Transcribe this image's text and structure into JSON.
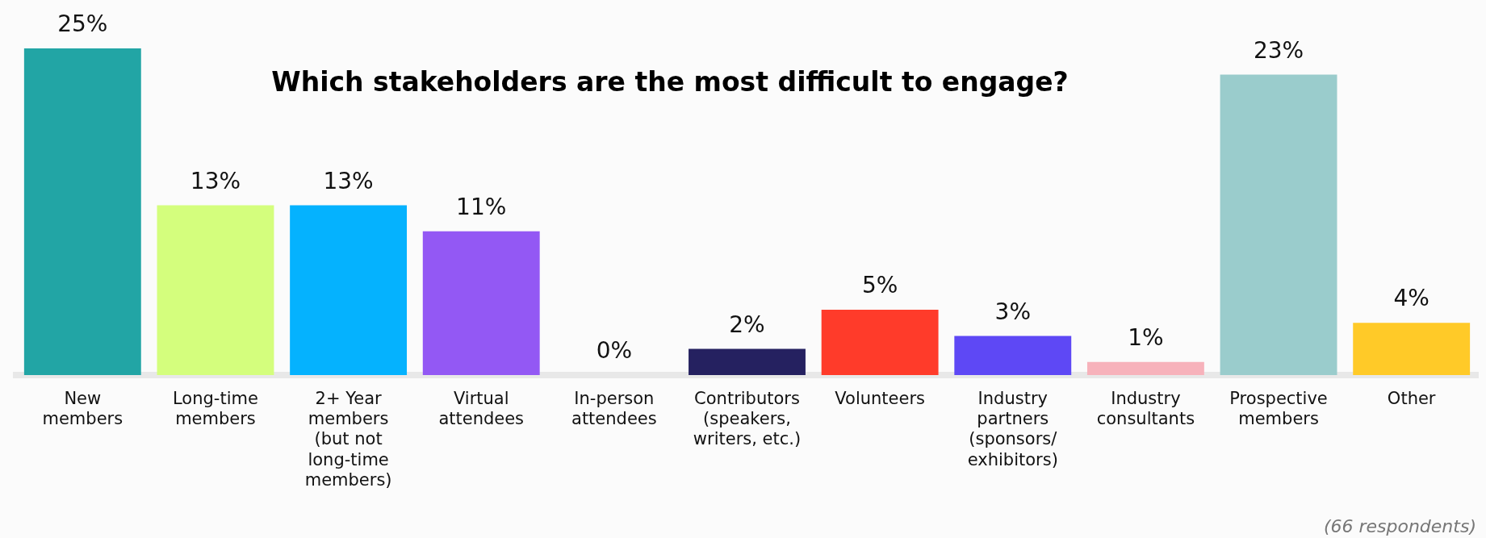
{
  "chart_data": {
    "type": "bar",
    "title": "Which stakeholders are the most difficult to engage?",
    "categories": [
      "New members",
      "Long-time members",
      "2+ Year members (but not long-time members)",
      "Virtual attendees",
      "In-person attendees",
      "Contributors (speakers, writers, etc.)",
      "Volunteers",
      "Industry partners (sponsors/ exhibitors)",
      "Industry consultants",
      "Prospective members",
      "Other"
    ],
    "values": [
      25,
      13,
      13,
      11,
      0,
      2,
      5,
      3,
      1,
      23,
      4
    ],
    "colors": [
      "#22a5a5",
      "#d4fe7d",
      "#05b2fe",
      "#9358f4",
      "#cccccc",
      "#252160",
      "#ff3b2a",
      "#5e48f5",
      "#f7b2bb",
      "#9acccc",
      "#ffca28"
    ],
    "value_labels": [
      "25%",
      "13%",
      "13%",
      "11%",
      "0%",
      "2%",
      "5%",
      "3%",
      "1%",
      "23%",
      "4%"
    ],
    "annotations": [
      "(66 respondents)"
    ],
    "grid": false,
    "legend": false
  }
}
